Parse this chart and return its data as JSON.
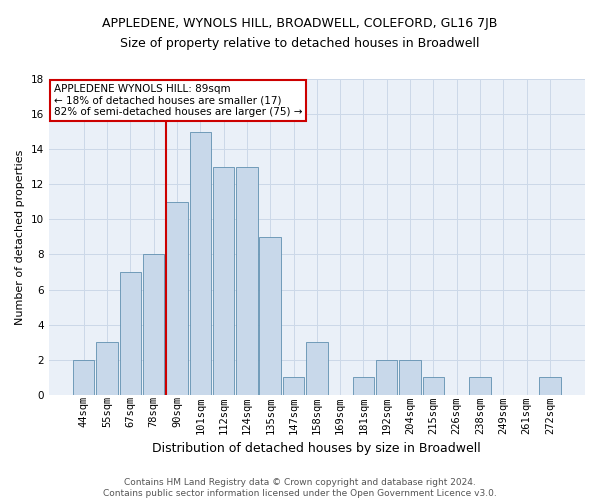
{
  "title": "APPLEDENE, WYNOLS HILL, BROADWELL, COLEFORD, GL16 7JB",
  "subtitle": "Size of property relative to detached houses in Broadwell",
  "xlabel": "Distribution of detached houses by size in Broadwell",
  "ylabel": "Number of detached properties",
  "bar_labels": [
    "44sqm",
    "55sqm",
    "67sqm",
    "78sqm",
    "90sqm",
    "101sqm",
    "112sqm",
    "124sqm",
    "135sqm",
    "147sqm",
    "158sqm",
    "169sqm",
    "181sqm",
    "192sqm",
    "204sqm",
    "215sqm",
    "226sqm",
    "238sqm",
    "249sqm",
    "261sqm",
    "272sqm"
  ],
  "bar_values": [
    2,
    3,
    7,
    8,
    11,
    15,
    13,
    13,
    9,
    1,
    3,
    0,
    1,
    2,
    2,
    1,
    0,
    1,
    0,
    0,
    1
  ],
  "bar_color": "#c8d8ea",
  "bar_edge_color": "#6090b0",
  "grid_color": "#ccd8e8",
  "background_color": "#eaf0f8",
  "ref_line_index": 4,
  "ref_line_color": "#cc0000",
  "annotation_title": "APPLEDENE WYNOLS HILL: 89sqm",
  "annotation_line1": "← 18% of detached houses are smaller (17)",
  "annotation_line2": "82% of semi-detached houses are larger (75) →",
  "annotation_box_color": "#cc0000",
  "annotation_bg": "#ffffff",
  "footer_line1": "Contains HM Land Registry data © Crown copyright and database right 2024.",
  "footer_line2": "Contains public sector information licensed under the Open Government Licence v3.0.",
  "ylim": [
    0,
    18
  ],
  "yticks": [
    0,
    2,
    4,
    6,
    8,
    10,
    12,
    14,
    16,
    18
  ],
  "title_fontsize": 9,
  "subtitle_fontsize": 9,
  "ylabel_fontsize": 8,
  "xlabel_fontsize": 9,
  "tick_fontsize": 7.5,
  "annot_fontsize": 7.5,
  "footer_fontsize": 6.5
}
